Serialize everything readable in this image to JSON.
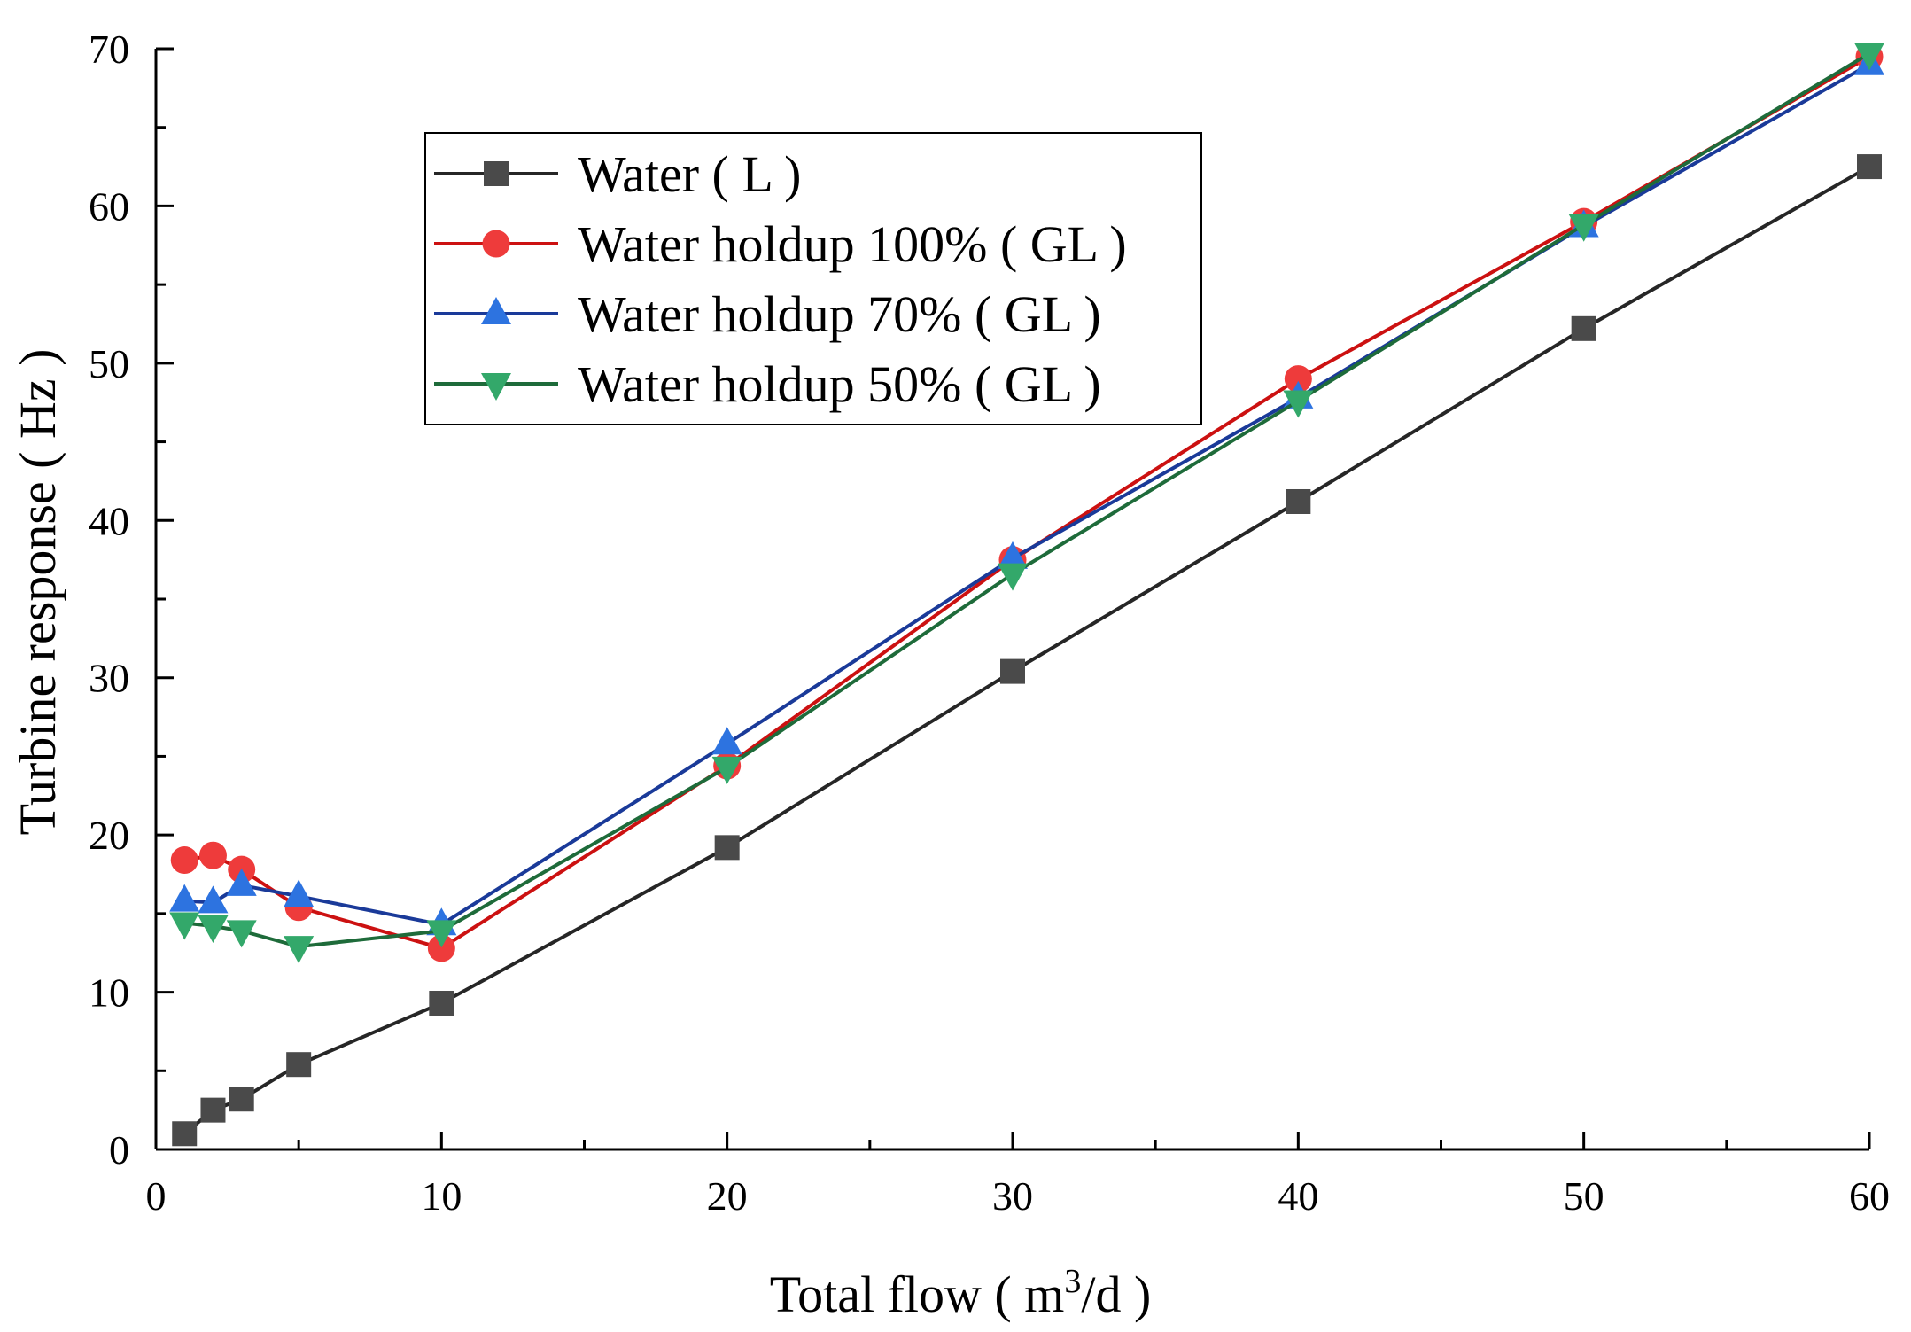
{
  "chart_data": {
    "type": "line",
    "title": "",
    "xlabel_main": "Total flow ( m",
    "xlabel_sup": "3",
    "xlabel_tail": "/d )",
    "ylabel": "Turbine response ( Hz )",
    "xlim": [
      0,
      60
    ],
    "ylim": [
      0,
      70
    ],
    "xticks": [
      0,
      10,
      20,
      30,
      40,
      50,
      60
    ],
    "yticks": [
      0,
      10,
      20,
      30,
      40,
      50,
      60,
      70
    ],
    "xtick_labels": [
      "0",
      "10",
      "20",
      "30",
      "40",
      "50",
      "60"
    ],
    "ytick_labels": [
      "0",
      "10",
      "20",
      "30",
      "40",
      "50",
      "60",
      "70"
    ],
    "grid": false,
    "legend_position": "top-left",
    "series": [
      {
        "name": "Water ( L )",
        "marker": "square",
        "line_color": "#262626",
        "marker_color": "#4a4a4a",
        "x": [
          1,
          2,
          3,
          5,
          10,
          20,
          30,
          40,
          50,
          60
        ],
        "y": [
          1.0,
          2.5,
          3.2,
          5.4,
          9.3,
          19.2,
          30.4,
          41.2,
          52.2,
          62.5
        ]
      },
      {
        "name": "Water holdup 100% ( GL )",
        "marker": "circle",
        "line_color": "#cc1111",
        "marker_color": "#ee3b3b",
        "x": [
          1,
          2,
          3,
          5,
          10,
          20,
          30,
          40,
          50,
          60
        ],
        "y": [
          18.4,
          18.7,
          17.8,
          15.4,
          12.8,
          24.4,
          37.5,
          49.0,
          59.0,
          69.5
        ]
      },
      {
        "name": "Water holdup 70% ( GL )",
        "marker": "triangle-up",
        "line_color": "#1a3a99",
        "marker_color": "#2d73e0",
        "x": [
          1,
          2,
          3,
          5,
          10,
          20,
          30,
          40,
          50,
          60
        ],
        "y": [
          15.8,
          15.7,
          16.8,
          16.1,
          14.3,
          25.8,
          37.6,
          47.8,
          58.7,
          69.0
        ]
      },
      {
        "name": "Water holdup 50% ( GL )",
        "marker": "triangle-down",
        "line_color": "#1e6b3a",
        "marker_color": "#33a86a",
        "x": [
          1,
          2,
          3,
          5,
          10,
          20,
          30,
          40,
          50,
          60
        ],
        "y": [
          14.4,
          14.2,
          13.9,
          12.9,
          13.9,
          24.3,
          36.6,
          47.6,
          58.8,
          69.7
        ]
      }
    ]
  }
}
